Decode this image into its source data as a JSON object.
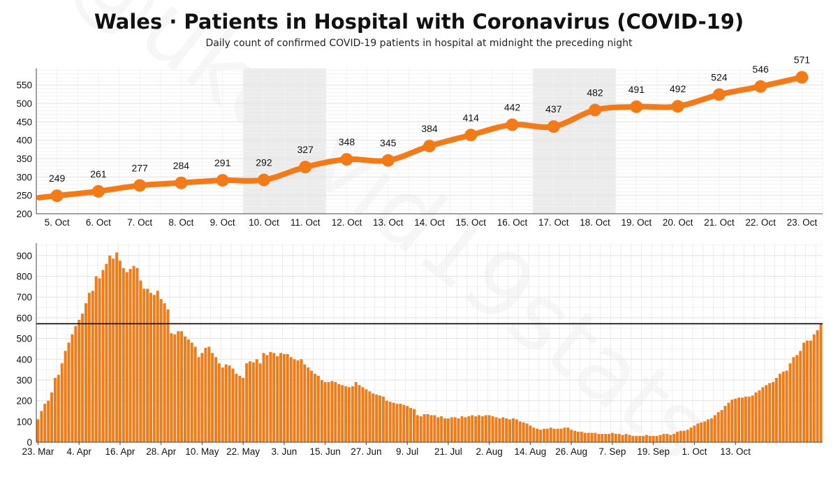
{
  "header": {
    "title": "Wales · Patients in Hospital with Coronavirus (COVID-19)",
    "subtitle": "Daily count of confirmed COVID-19 patients in hospital at midnight the preceding night",
    "watermark": "@ukcovid19stats"
  },
  "colors": {
    "accent": "#f47a16",
    "bar": "#f47a16",
    "reference_line": "#000000",
    "weekend_band": "#ebebeb"
  },
  "chart_data": [
    {
      "type": "line",
      "title": "",
      "categories": [
        "5. Oct",
        "6. Oct",
        "7. Oct",
        "8. Oct",
        "9. Oct",
        "10. Oct",
        "11. Oct",
        "12. Oct",
        "13. Oct",
        "14. Oct",
        "15. Oct",
        "16. Oct",
        "17. Oct",
        "18. Oct",
        "19. Oct",
        "20. Oct",
        "21. Oct",
        "22. Oct",
        "23. Oct"
      ],
      "values": [
        249,
        261,
        277,
        284,
        291,
        292,
        327,
        348,
        345,
        384,
        414,
        442,
        437,
        482,
        491,
        492,
        524,
        546,
        571
      ],
      "yticks": [
        200,
        250,
        300,
        350,
        400,
        450,
        500,
        550
      ],
      "ylim": [
        200,
        595
      ],
      "weekend_bands": [
        [
          "10. Oct",
          "11. Oct"
        ],
        [
          "17. Oct",
          "18. Oct"
        ]
      ],
      "grid": true
    },
    {
      "type": "bar",
      "xtick_labels": [
        "23. Mar",
        "4. Apr",
        "16. Apr",
        "28. Apr",
        "10. May",
        "22. May",
        "3. Jun",
        "15. Jun",
        "27. Jun",
        "9. Jul",
        "21. Jul",
        "2. Aug",
        "14. Aug",
        "26. Aug",
        "7. Sep",
        "19. Sep",
        "1. Oct",
        "13. Oct"
      ],
      "values": [
        110,
        150,
        185,
        200,
        240,
        310,
        325,
        380,
        440,
        480,
        520,
        560,
        590,
        620,
        670,
        720,
        730,
        800,
        790,
        830,
        860,
        900,
        885,
        915,
        875,
        840,
        820,
        835,
        850,
        840,
        780,
        740,
        740,
        720,
        710,
        730,
        690,
        670,
        640,
        525,
        520,
        535,
        535,
        510,
        495,
        480,
        460,
        410,
        430,
        455,
        460,
        430,
        410,
        380,
        360,
        375,
        370,
        355,
        330,
        320,
        310,
        380,
        390,
        385,
        400,
        380,
        430,
        420,
        435,
        430,
        415,
        430,
        425,
        425,
        410,
        400,
        395,
        400,
        375,
        360,
        345,
        330,
        320,
        300,
        290,
        290,
        295,
        290,
        280,
        275,
        270,
        265,
        270,
        290,
        275,
        265,
        255,
        245,
        235,
        230,
        225,
        220,
        200,
        195,
        190,
        185,
        185,
        180,
        175,
        165,
        160,
        130,
        125,
        135,
        135,
        130,
        130,
        120,
        125,
        115,
        115,
        120,
        120,
        115,
        125,
        120,
        125,
        130,
        125,
        130,
        125,
        130,
        130,
        125,
        120,
        115,
        120,
        115,
        110,
        115,
        110,
        100,
        95,
        90,
        80,
        70,
        65,
        60,
        65,
        65,
        70,
        65,
        65,
        65,
        70,
        70,
        60,
        55,
        50,
        50,
        45,
        45,
        45,
        45,
        40,
        40,
        40,
        40,
        45,
        40,
        40,
        35,
        40,
        35,
        30,
        30,
        30,
        30,
        35,
        30,
        30,
        30,
        35,
        40,
        40,
        35,
        40,
        50,
        55,
        55,
        60,
        70,
        80,
        90,
        95,
        100,
        110,
        115,
        130,
        145,
        155,
        175,
        190,
        205,
        210,
        215,
        215,
        220,
        220,
        225,
        240,
        250,
        265,
        275,
        285,
        290,
        310,
        330,
        340,
        345,
        380,
        410,
        420,
        440,
        480,
        490,
        490,
        520,
        540,
        571
      ],
      "yticks": [
        0,
        100,
        200,
        300,
        400,
        500,
        600,
        700,
        800,
        900
      ],
      "ylim": [
        0,
        960
      ],
      "reference_line": 571,
      "grid": true
    }
  ]
}
